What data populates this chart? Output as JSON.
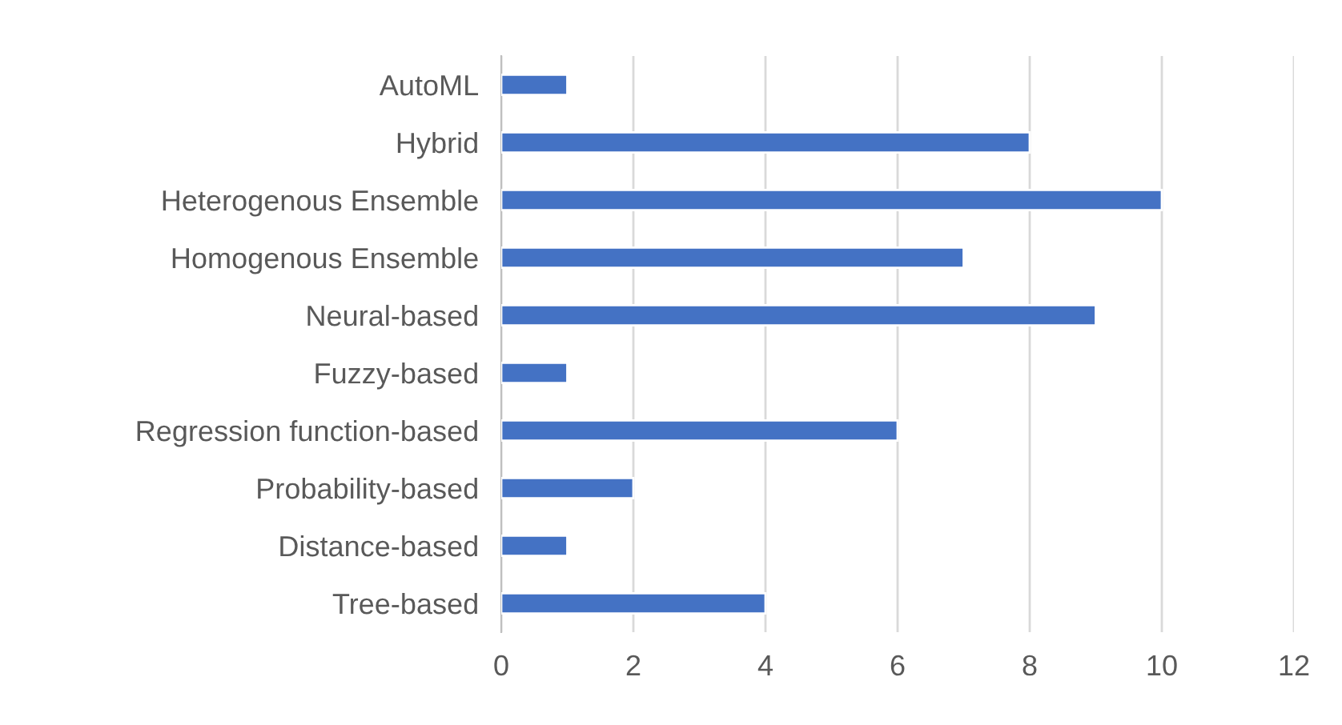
{
  "chart_data": {
    "type": "bar",
    "orientation": "horizontal",
    "categories": [
      "AutoML",
      "Hybrid",
      "Heterogenous Ensemble",
      "Homogenous Ensemble",
      "Neural-based",
      "Fuzzy-based",
      "Regression function-based",
      "Probability-based",
      "Distance-based",
      "Tree-based"
    ],
    "values": [
      1,
      8,
      10,
      7,
      9,
      1,
      6,
      2,
      1,
      4
    ],
    "color": "#4472c4",
    "xlim": [
      0,
      12
    ],
    "xticks": [
      0,
      2,
      4,
      6,
      8,
      10,
      12
    ],
    "grid": "x",
    "legend": false
  }
}
